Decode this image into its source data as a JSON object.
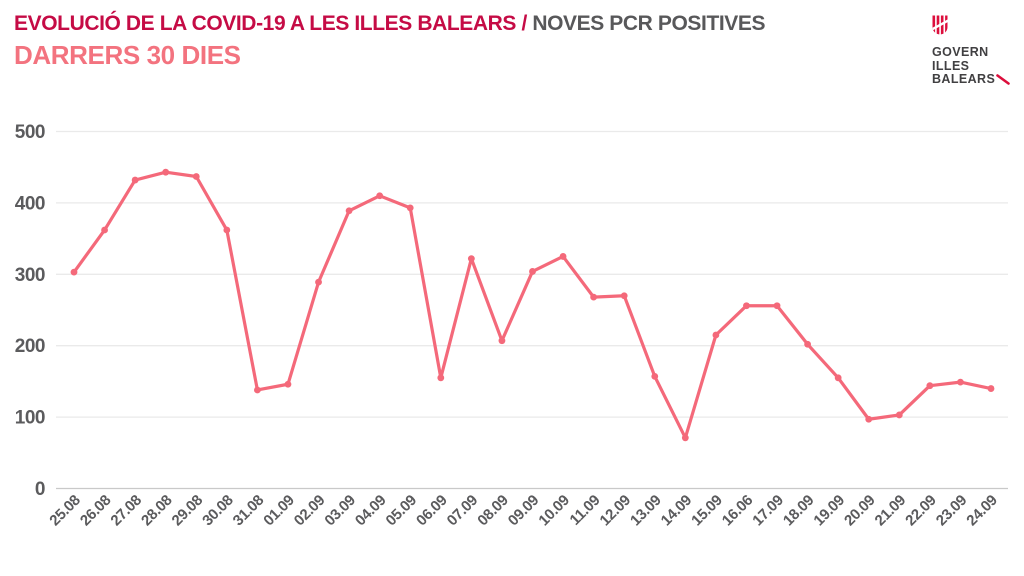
{
  "header": {
    "title_primary": "EVOLUCIÓ DE LA COVID-19 A LES ILLES BALEARS /",
    "title_secondary": "NOVES PCR POSITIVES",
    "subtitle": "DARRERS 30 DIES"
  },
  "logo": {
    "icon": "govern-illes-balears-shield-icon",
    "lines": [
      "GOVERN",
      "ILLES",
      "BALEARS"
    ]
  },
  "colors": {
    "background": "#ffffff",
    "title_primary": "#c50b45",
    "title_secondary": "#58585a",
    "subtitle": "#f3737f",
    "line": "#f4697a",
    "grid": "#eaeaea",
    "zero_line": "#c9c9c9",
    "axis_text": "#5b5b5d",
    "logo_text": "#414042",
    "logo_red": "#dc0e3c"
  },
  "chart_data": {
    "type": "line",
    "title": "EVOLUCIÓ DE LA COVID-19 A LES ILLES BALEARS / NOVES PCR POSITIVES — DARRERS 30 DIES",
    "categories": [
      "25.08",
      "26.08",
      "27.08",
      "28.08",
      "29.08",
      "30.08",
      "31.08",
      "01.09",
      "02.09",
      "03.09",
      "04.09",
      "05.09",
      "06.09",
      "07.09",
      "08.09",
      "09.09",
      "10.09",
      "11.09",
      "12.09",
      "13.09",
      "14.09",
      "15.09",
      "16.06",
      "17.09",
      "18.09",
      "19.09",
      "20.09",
      "21.09",
      "22.09",
      "23.09",
      "24.09"
    ],
    "values": [
      303,
      362,
      432,
      443,
      437,
      362,
      138,
      146,
      289,
      389,
      410,
      393,
      155,
      322,
      207,
      304,
      325,
      268,
      270,
      157,
      71,
      215,
      256,
      256,
      202,
      155,
      97,
      103,
      144,
      149,
      140
    ],
    "xlabel": "",
    "ylabel": "",
    "ylim": [
      0,
      500
    ],
    "yticks": [
      0,
      100,
      200,
      300,
      400,
      500
    ],
    "grid": true,
    "legend_position": "none",
    "marker": "circle"
  }
}
